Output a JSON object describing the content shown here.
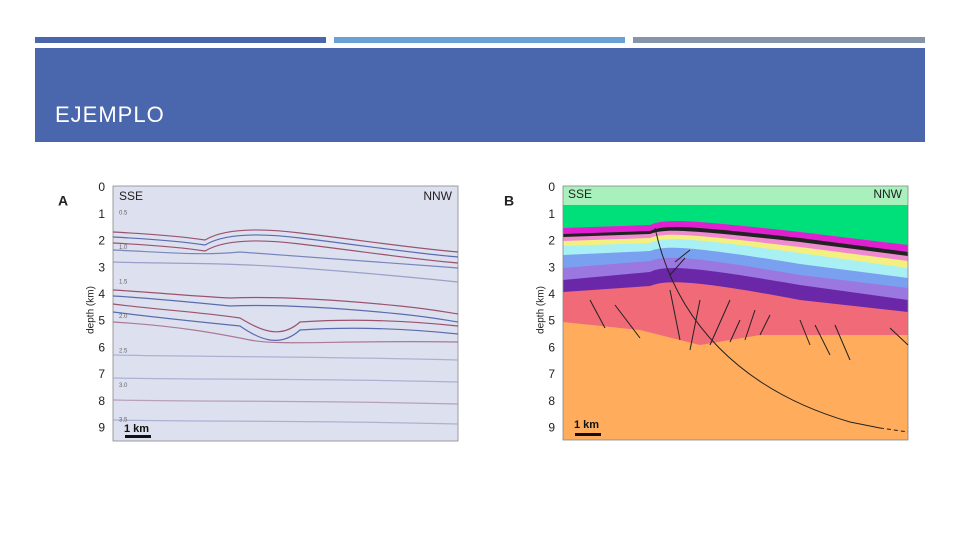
{
  "header": {
    "title": "EJEMPLO"
  },
  "figures": [
    {
      "label": "A",
      "left_label": "SSE",
      "right_label": "NNW",
      "axis_label": "depth (km)",
      "depth_ticks": [
        "0",
        "1",
        "2",
        "3",
        "4",
        "5",
        "6",
        "7",
        "8",
        "9"
      ],
      "time_ticks": [
        "0.5",
        "1.0",
        "1.5",
        "2.0",
        "2.5",
        "3.0",
        "3.5"
      ],
      "scale_bar": "1 km"
    },
    {
      "label": "B",
      "left_label": "SSE",
      "right_label": "NNW",
      "axis_label": "depth (km)",
      "depth_ticks": [
        "0",
        "1",
        "2",
        "3",
        "4",
        "5",
        "6",
        "7",
        "8",
        "9"
      ],
      "scale_bar": "1 km"
    }
  ]
}
